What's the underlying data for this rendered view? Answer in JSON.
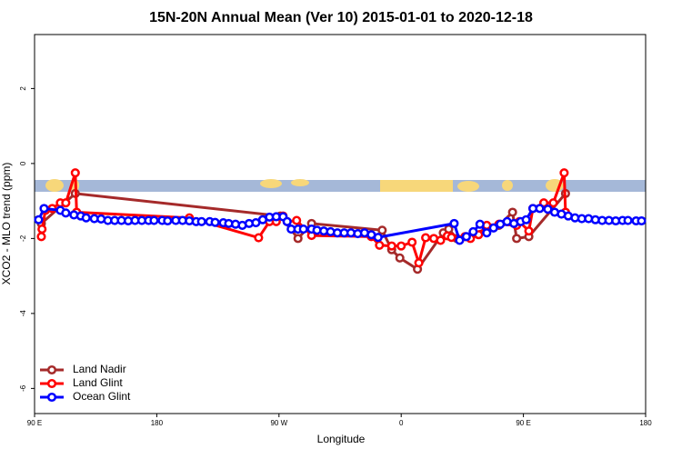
{
  "chart_data": {
    "type": "line",
    "title": "15N-20N Annual Mean (Ver 10)   2015-01-01 to 2020-12-18",
    "x_label": "Longitude",
    "y_label": "XCO2 - MLO trend (ppm)",
    "xlim": [
      90,
      540
    ],
    "ylim": [
      -6.67,
      3.44
    ],
    "xticks": [
      {
        "value": 90,
        "label": "90 E"
      },
      {
        "value": 180,
        "label": "180"
      },
      {
        "value": 270,
        "label": "90 W"
      },
      {
        "value": 360,
        "label": "0"
      },
      {
        "value": 450,
        "label": "90 E"
      },
      {
        "value": 540,
        "label": "180"
      }
    ],
    "yticks": [
      -6,
      -4,
      -2,
      0,
      2
    ],
    "legend": "bottom-left",
    "series": [
      {
        "name": "Land Nadir",
        "color": "#a52a2a",
        "x": [
          95,
          120,
          271,
          284,
          294,
          346,
          353,
          359,
          372,
          391,
          395,
          401,
          432,
          442,
          445,
          454,
          481
        ],
        "values": [
          -1.6,
          -0.8,
          -1.4,
          -2.0,
          -1.6,
          -1.78,
          -2.3,
          -2.52,
          -2.82,
          -1.85,
          -1.75,
          -2.0,
          -1.65,
          -1.3,
          -2.0,
          -1.95,
          -0.8
        ]
      },
      {
        "name": "Land Glint",
        "color": "#ff0000",
        "x": [
          95,
          95.5,
          98,
          103,
          109,
          113,
          120,
          121,
          204,
          255,
          263,
          268,
          273,
          276,
          283,
          294,
          338,
          344,
          353,
          360,
          368,
          373,
          378,
          384,
          389,
          394,
          397,
          407,
          411,
          417,
          423,
          432,
          445,
          447,
          454,
          457,
          465,
          472,
          480,
          481
        ],
        "values": [
          -1.95,
          -1.75,
          -1.25,
          -1.2,
          -1.05,
          -1.05,
          -0.25,
          -1.3,
          -1.45,
          -1.98,
          -1.55,
          -1.55,
          -1.4,
          -1.55,
          -1.52,
          -1.92,
          -1.95,
          -2.18,
          -2.2,
          -2.2,
          -2.1,
          -2.65,
          -1.98,
          -2.0,
          -2.05,
          -1.93,
          -1.97,
          -1.95,
          -2.0,
          -1.9,
          -1.65,
          -1.62,
          -1.65,
          -1.55,
          -1.8,
          -1.2,
          -1.05,
          -1.05,
          -0.25,
          -1.3
        ]
      },
      {
        "name": "Ocean Glint",
        "color": "#0000ff",
        "x": [
          93,
          97,
          109,
          113,
          119,
          124,
          128,
          134,
          139,
          144,
          149,
          154,
          159,
          164,
          169,
          174,
          178,
          184,
          188,
          194,
          199,
          204,
          209,
          213,
          219,
          223,
          229,
          233,
          238,
          243,
          248,
          253,
          258,
          263,
          268,
          273,
          276,
          279,
          284,
          288,
          294,
          298,
          303,
          308,
          313,
          318,
          323,
          328,
          333,
          338,
          343,
          399,
          403,
          408,
          413,
          418,
          423,
          428,
          433,
          438,
          443,
          448,
          452,
          457,
          462,
          468,
          473,
          478,
          483,
          488,
          493,
          498,
          503,
          508,
          513,
          518,
          523,
          527,
          533,
          537
        ],
        "values": [
          -1.5,
          -1.2,
          -1.25,
          -1.32,
          -1.37,
          -1.4,
          -1.45,
          -1.47,
          -1.48,
          -1.52,
          -1.52,
          -1.52,
          -1.53,
          -1.52,
          -1.52,
          -1.52,
          -1.52,
          -1.52,
          -1.53,
          -1.52,
          -1.52,
          -1.53,
          -1.55,
          -1.55,
          -1.55,
          -1.57,
          -1.58,
          -1.6,
          -1.62,
          -1.65,
          -1.6,
          -1.58,
          -1.5,
          -1.43,
          -1.42,
          -1.42,
          -1.55,
          -1.75,
          -1.75,
          -1.75,
          -1.75,
          -1.78,
          -1.8,
          -1.82,
          -1.85,
          -1.85,
          -1.85,
          -1.87,
          -1.85,
          -1.9,
          -1.97,
          -1.6,
          -2.05,
          -1.95,
          -1.82,
          -1.62,
          -1.85,
          -1.72,
          -1.62,
          -1.55,
          -1.6,
          -1.55,
          -1.5,
          -1.2,
          -1.2,
          -1.22,
          -1.3,
          -1.35,
          -1.4,
          -1.45,
          -1.47,
          -1.47,
          -1.5,
          -1.52,
          -1.52,
          -1.53,
          -1.52,
          -1.52,
          -1.53,
          -1.53
        ]
      }
    ]
  }
}
